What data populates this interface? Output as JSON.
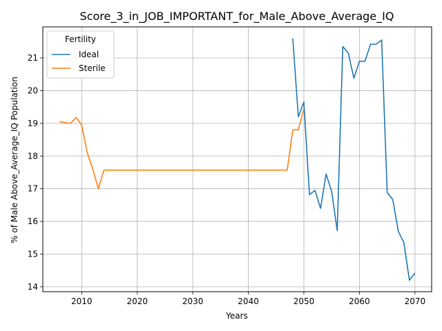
{
  "chart_data": {
    "type": "line",
    "title": "Score_3_in_JOB_IMPORTANT_for_Male_Above_Average_IQ",
    "xlabel": "Years",
    "ylabel": "% of Male Above_Average_IQ Population",
    "xlim": [
      2003,
      2073
    ],
    "ylim": [
      13.85,
      21.95
    ],
    "xticks": [
      2010,
      2020,
      2030,
      2040,
      2050,
      2060,
      2070
    ],
    "yticks": [
      14,
      15,
      16,
      17,
      18,
      19,
      20,
      21
    ],
    "grid": true,
    "legend": {
      "title": "Fertility",
      "placement": "top-left"
    },
    "series": [
      {
        "name": "Ideal",
        "color": "#1f77b4",
        "x": [
          2048,
          2049,
          2050,
          2051,
          2052,
          2053,
          2054,
          2055,
          2056,
          2057,
          2058,
          2059,
          2060,
          2061,
          2062,
          2063,
          2064,
          2065,
          2066,
          2067,
          2068,
          2069,
          2070
        ],
        "y": [
          21.6,
          19.2,
          19.65,
          16.82,
          16.95,
          16.4,
          17.45,
          16.92,
          15.72,
          21.35,
          21.15,
          20.38,
          20.9,
          20.9,
          21.42,
          21.42,
          21.55,
          16.88,
          16.67,
          15.7,
          15.35,
          14.2,
          14.42
        ]
      },
      {
        "name": "Sterile",
        "color": "#ff7f0e",
        "x": [
          2006,
          2007,
          2008,
          2009,
          2010,
          2011,
          2012,
          2013,
          2014,
          2015,
          2020,
          2025,
          2030,
          2035,
          2040,
          2045,
          2047,
          2048,
          2049,
          2050
        ],
        "y": [
          19.05,
          19.02,
          19.0,
          19.18,
          18.95,
          18.1,
          17.6,
          17.0,
          17.57,
          17.57,
          17.57,
          17.57,
          17.57,
          17.57,
          17.57,
          17.57,
          17.57,
          18.8,
          18.8,
          19.45
        ]
      }
    ]
  }
}
